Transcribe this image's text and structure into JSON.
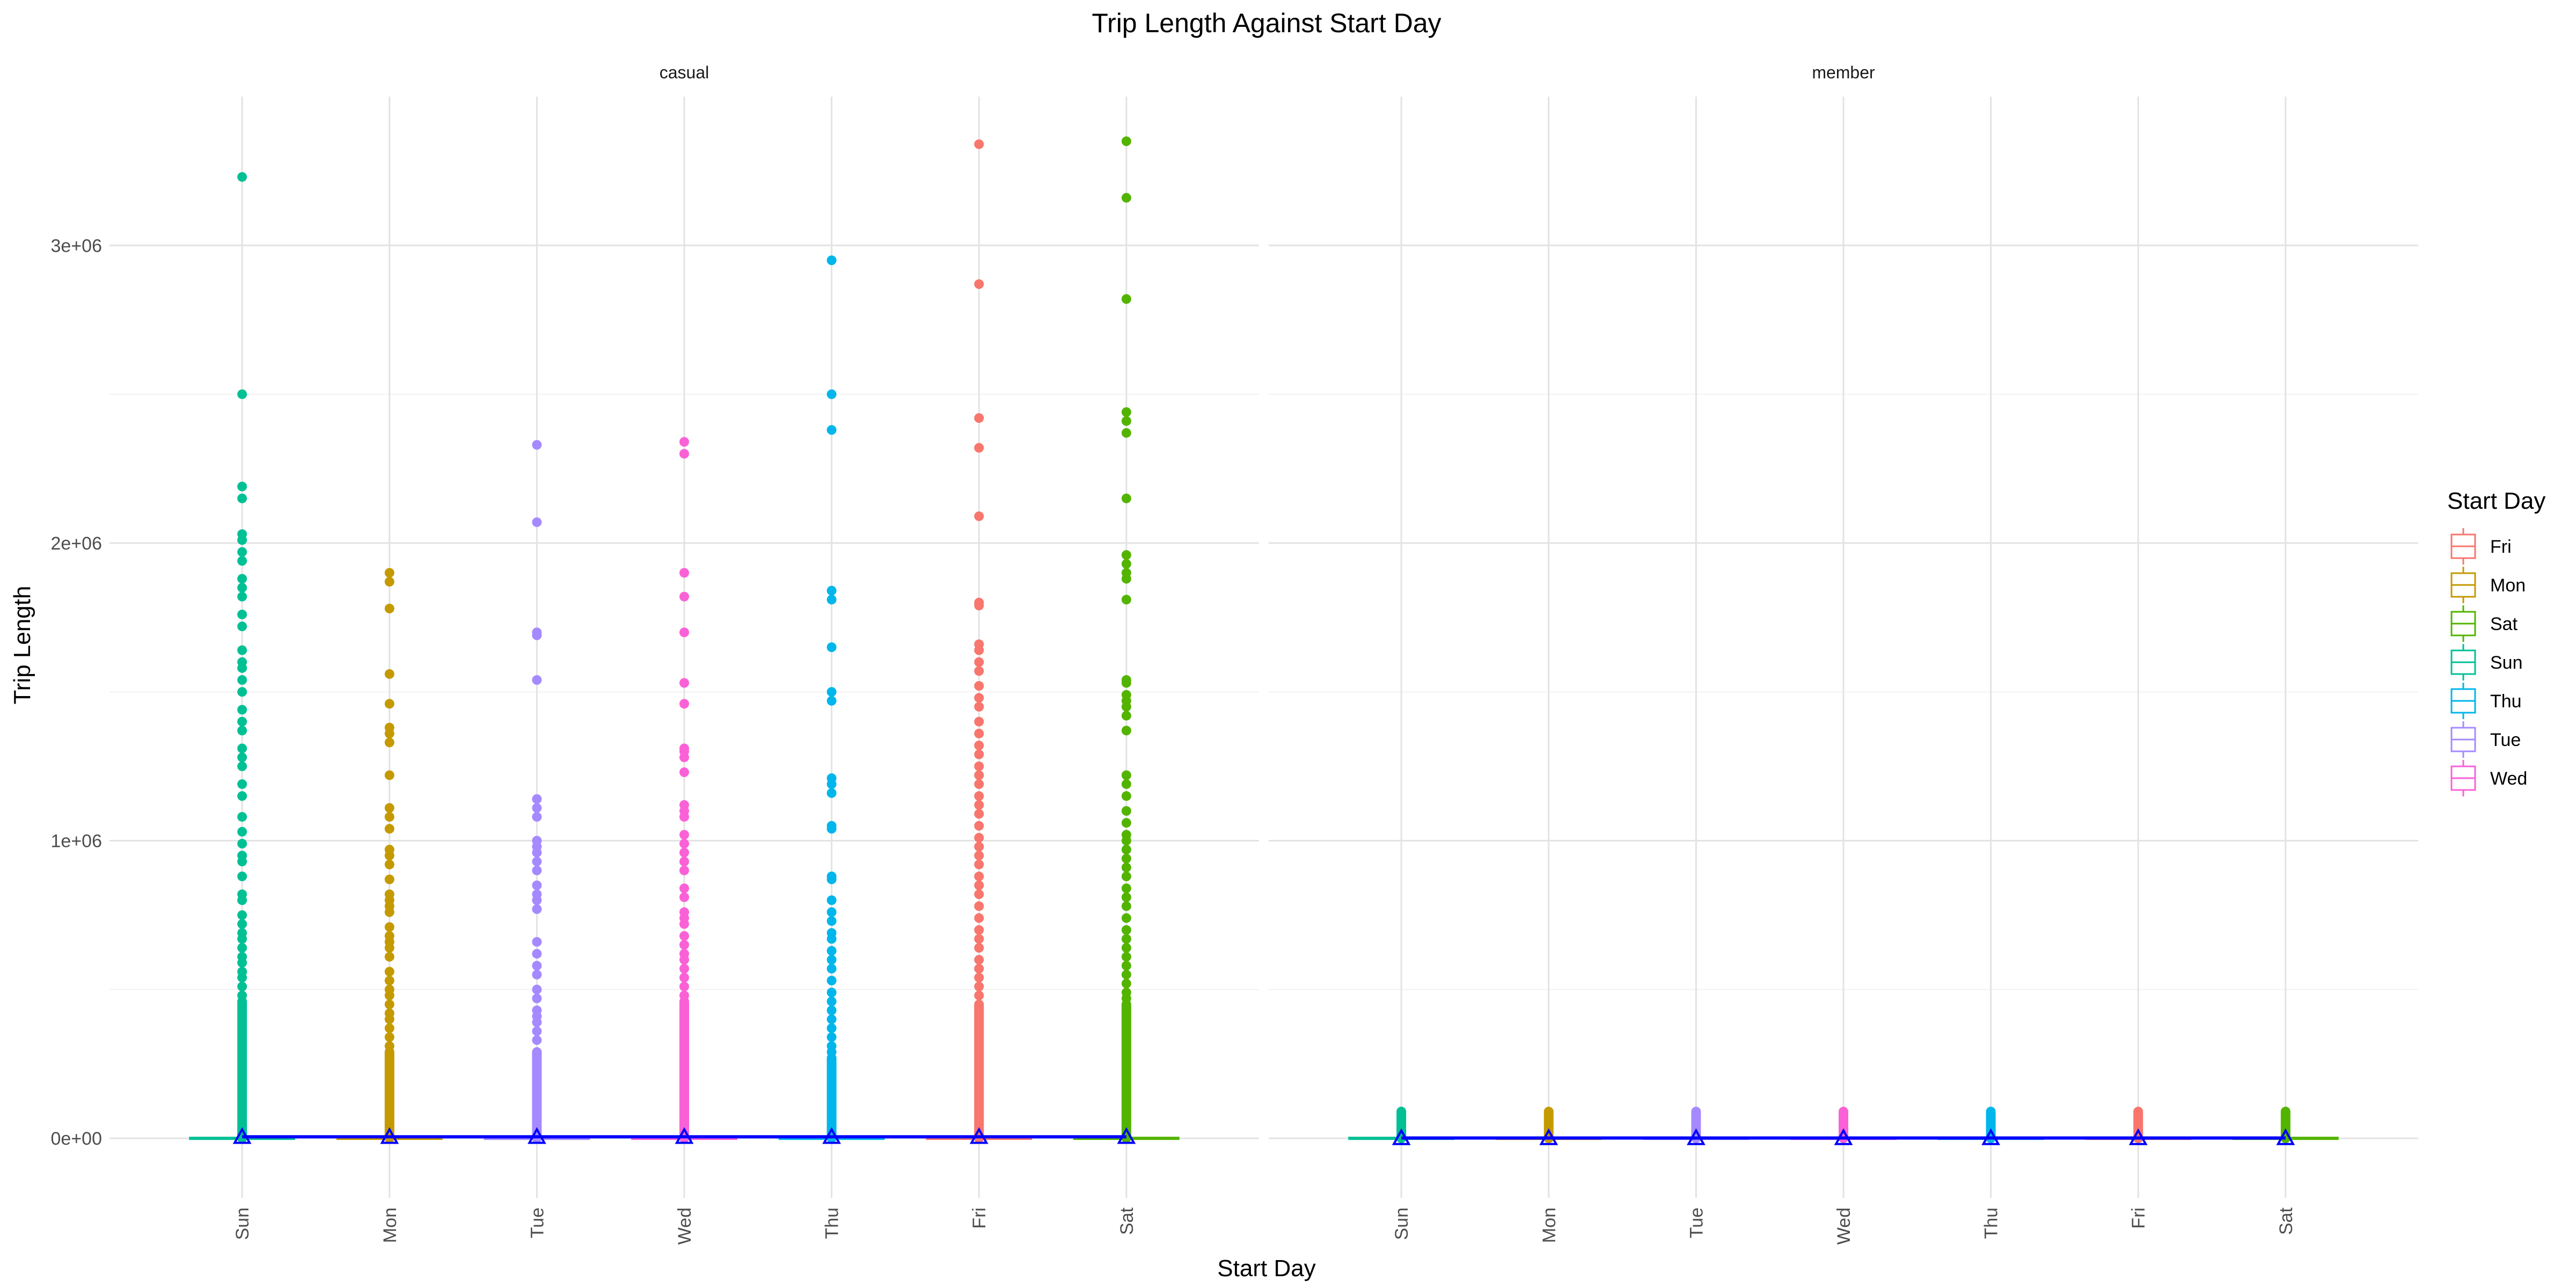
{
  "chart_data": {
    "type": "boxplot",
    "title": "Trip Length Against Start Day",
    "xlabel": "Start Day",
    "ylabel": "Trip Length",
    "categories": [
      "Sun",
      "Mon",
      "Tue",
      "Wed",
      "Thu",
      "Fri",
      "Sat"
    ],
    "facets": [
      "casual",
      "member"
    ],
    "y_ticks": [
      0,
      1000000,
      2000000,
      3000000
    ],
    "y_tick_labels": [
      "0e+00",
      "1e+06",
      "2e+06",
      "3e+06"
    ],
    "ylim": [
      -200000,
      3500000
    ],
    "legend": {
      "title": "Start Day",
      "placement": "right",
      "entries": [
        {
          "label": "Fri",
          "color": "#F8766D"
        },
        {
          "label": "Mon",
          "color": "#C49A00"
        },
        {
          "label": "Sat",
          "color": "#53B400"
        },
        {
          "label": "Sun",
          "color": "#00C094"
        },
        {
          "label": "Thu",
          "color": "#00B6EB"
        },
        {
          "label": "Tue",
          "color": "#A58AFF"
        },
        {
          "label": "Wed",
          "color": "#FB61D7"
        }
      ]
    },
    "day_colors": {
      "Sun": "#00C094",
      "Mon": "#C49A00",
      "Tue": "#A58AFF",
      "Wed": "#FB61D7",
      "Thu": "#00B6EB",
      "Fri": "#F8766D",
      "Sat": "#53B400"
    },
    "mean_line_color": "#0000FF",
    "mean_marker_color": "#0000FF",
    "series": [
      {
        "facet": "casual",
        "mean": [
          5000,
          5000,
          5000,
          5000,
          5000,
          5000,
          5000
        ],
        "outlier_dense_top": [
          460000,
          290000,
          290000,
          460000,
          270000,
          450000,
          450000
        ],
        "outliers": {
          "Sun": [
            3230000,
            2500000,
            2190000,
            2150000,
            2030000,
            2010000,
            1970000,
            1940000,
            1880000,
            1850000,
            1820000,
            1760000,
            1720000,
            1640000,
            1600000,
            1580000,
            1540000,
            1500000,
            1440000,
            1400000,
            1370000,
            1310000,
            1280000,
            1250000,
            1190000,
            1150000,
            1080000,
            1030000,
            990000,
            950000,
            930000,
            880000,
            820000,
            800000,
            750000,
            720000,
            690000,
            670000,
            640000,
            610000,
            590000,
            560000,
            540000,
            510000,
            480000
          ],
          "Mon": [
            1900000,
            1870000,
            1780000,
            1560000,
            1460000,
            1380000,
            1360000,
            1330000,
            1220000,
            1110000,
            1080000,
            1040000,
            970000,
            950000,
            920000,
            870000,
            820000,
            800000,
            780000,
            760000,
            710000,
            680000,
            660000,
            640000,
            610000,
            560000,
            530000,
            500000,
            480000,
            450000,
            420000,
            400000,
            370000,
            340000,
            310000
          ],
          "Tue": [
            2330000,
            2070000,
            1700000,
            1690000,
            1540000,
            1140000,
            1110000,
            1080000,
            1000000,
            980000,
            960000,
            930000,
            900000,
            850000,
            820000,
            800000,
            770000,
            660000,
            620000,
            580000,
            550000,
            500000,
            470000,
            430000,
            410000,
            390000,
            360000,
            330000
          ],
          "Wed": [
            2340000,
            2300000,
            1900000,
            1820000,
            1700000,
            1530000,
            1460000,
            1310000,
            1300000,
            1280000,
            1230000,
            1120000,
            1100000,
            1080000,
            1020000,
            990000,
            960000,
            930000,
            900000,
            840000,
            810000,
            760000,
            740000,
            720000,
            680000,
            650000,
            620000,
            600000,
            570000,
            540000,
            510000,
            480000
          ],
          "Thu": [
            2950000,
            2500000,
            2380000,
            1840000,
            1810000,
            1650000,
            1500000,
            1470000,
            1210000,
            1190000,
            1160000,
            1050000,
            1040000,
            880000,
            870000,
            800000,
            760000,
            730000,
            690000,
            670000,
            630000,
            600000,
            570000,
            530000,
            490000,
            460000,
            430000,
            400000,
            370000,
            340000,
            310000,
            290000
          ],
          "Fri": [
            3340000,
            2870000,
            2420000,
            2320000,
            2090000,
            1800000,
            1790000,
            1660000,
            1640000,
            1600000,
            1570000,
            1520000,
            1480000,
            1450000,
            1400000,
            1360000,
            1320000,
            1290000,
            1250000,
            1220000,
            1190000,
            1150000,
            1120000,
            1090000,
            1050000,
            1010000,
            980000,
            950000,
            920000,
            880000,
            850000,
            820000,
            780000,
            740000,
            700000,
            670000,
            640000,
            600000,
            570000,
            540000,
            510000,
            480000
          ],
          "Sat": [
            3350000,
            3160000,
            2820000,
            2440000,
            2410000,
            2370000,
            2150000,
            1960000,
            1930000,
            1900000,
            1880000,
            1810000,
            1540000,
            1530000,
            1490000,
            1470000,
            1450000,
            1420000,
            1370000,
            1220000,
            1190000,
            1150000,
            1100000,
            1060000,
            1020000,
            1000000,
            970000,
            940000,
            910000,
            880000,
            840000,
            810000,
            780000,
            740000,
            700000,
            670000,
            640000,
            610000,
            580000,
            550000,
            520000,
            490000,
            470000
          ]
        }
      },
      {
        "facet": "member",
        "mean": [
          1000,
          1000,
          1000,
          1000,
          1000,
          1000,
          1000
        ],
        "outlier_dense_top": [
          90000,
          90000,
          90000,
          90000,
          90000,
          90000,
          90000
        ],
        "outliers": {
          "Sun": [],
          "Mon": [],
          "Tue": [],
          "Wed": [],
          "Thu": [],
          "Fri": [],
          "Sat": []
        }
      }
    ]
  }
}
